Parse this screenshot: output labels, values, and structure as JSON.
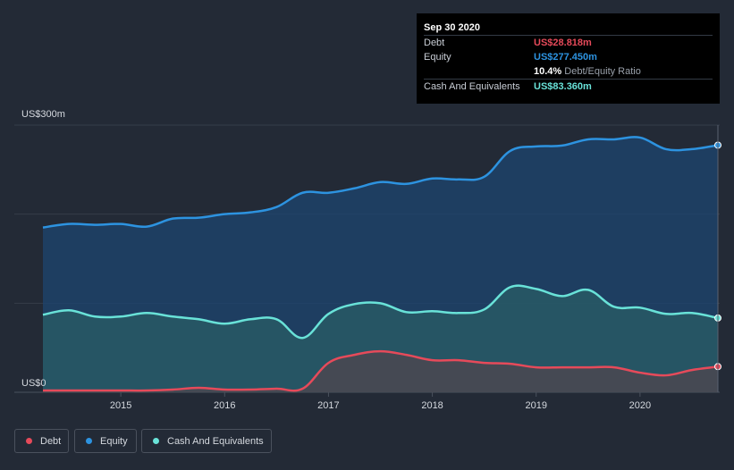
{
  "tooltip": {
    "date": "Sep 30 2020",
    "rows": [
      {
        "label": "Debt",
        "value": "US$28.818m",
        "color": "#e64a5a"
      },
      {
        "label": "Equity",
        "value": "US$277.450m",
        "color": "#2d93e0"
      },
      {
        "label": "",
        "value": "10.4%",
        "suffix": "Debt/Equity Ratio",
        "color": "#ffffff"
      },
      {
        "label": "Cash And Equivalents",
        "value": "US$83.360m",
        "color": "#69e2d8"
      }
    ]
  },
  "legend": [
    {
      "label": "Debt",
      "color": "#e64a5a"
    },
    {
      "label": "Equity",
      "color": "#2d93e0"
    },
    {
      "label": "Cash And Equivalents",
      "color": "#69e2d8"
    }
  ],
  "chart_data": {
    "type": "area",
    "ylim": [
      0,
      300
    ],
    "xlim": [
      2014.2,
      2020.75
    ],
    "y_tick_labels": [
      {
        "value": 300,
        "label": "US$300m"
      },
      {
        "value": 0,
        "label": "US$0"
      }
    ],
    "gridlines": [
      300,
      200,
      100,
      0
    ],
    "x_ticks": [
      {
        "value": 2015,
        "label": "2015"
      },
      {
        "value": 2016,
        "label": "2016"
      },
      {
        "value": 2017,
        "label": "2017"
      },
      {
        "value": 2018,
        "label": "2018"
      },
      {
        "value": 2019,
        "label": "2019"
      },
      {
        "value": 2020,
        "label": "2020"
      }
    ],
    "series": [
      {
        "name": "Equity",
        "color": "#2d93e0",
        "fill": "#1d4670",
        "points": [
          [
            2014.25,
            185
          ],
          [
            2014.5,
            189
          ],
          [
            2014.75,
            188
          ],
          [
            2015.0,
            189
          ],
          [
            2015.25,
            186
          ],
          [
            2015.5,
            195
          ],
          [
            2015.75,
            196
          ],
          [
            2016.0,
            200
          ],
          [
            2016.25,
            202
          ],
          [
            2016.5,
            208
          ],
          [
            2016.75,
            224
          ],
          [
            2017.0,
            224
          ],
          [
            2017.25,
            229
          ],
          [
            2017.5,
            236
          ],
          [
            2017.75,
            234
          ],
          [
            2018.0,
            240
          ],
          [
            2018.25,
            239
          ],
          [
            2018.5,
            242
          ],
          [
            2018.75,
            271
          ],
          [
            2019.0,
            276
          ],
          [
            2019.25,
            277
          ],
          [
            2019.5,
            284
          ],
          [
            2019.75,
            284
          ],
          [
            2020.0,
            286
          ],
          [
            2020.25,
            273
          ],
          [
            2020.5,
            273
          ],
          [
            2020.75,
            277.45
          ]
        ]
      },
      {
        "name": "Cash And Equivalents",
        "color": "#69e2d8",
        "fill": "#2a5d65",
        "points": [
          [
            2014.25,
            87
          ],
          [
            2014.5,
            92
          ],
          [
            2014.75,
            85
          ],
          [
            2015.0,
            85
          ],
          [
            2015.25,
            89
          ],
          [
            2015.5,
            85
          ],
          [
            2015.75,
            82
          ],
          [
            2016.0,
            77
          ],
          [
            2016.25,
            82
          ],
          [
            2016.5,
            82
          ],
          [
            2016.75,
            61
          ],
          [
            2017.0,
            88
          ],
          [
            2017.25,
            99
          ],
          [
            2017.5,
            100
          ],
          [
            2017.75,
            90
          ],
          [
            2018.0,
            91
          ],
          [
            2018.25,
            89
          ],
          [
            2018.5,
            93
          ],
          [
            2018.75,
            118
          ],
          [
            2019.0,
            116
          ],
          [
            2019.25,
            108
          ],
          [
            2019.5,
            115
          ],
          [
            2019.75,
            96
          ],
          [
            2020.0,
            95
          ],
          [
            2020.25,
            88
          ],
          [
            2020.5,
            89
          ],
          [
            2020.75,
            83.36
          ]
        ]
      },
      {
        "name": "Debt",
        "color": "#e64a5a",
        "fill": "#50454e",
        "points": [
          [
            2014.25,
            2
          ],
          [
            2014.5,
            2
          ],
          [
            2014.75,
            2
          ],
          [
            2015.0,
            2
          ],
          [
            2015.25,
            2
          ],
          [
            2015.5,
            3
          ],
          [
            2015.75,
            5
          ],
          [
            2016.0,
            3
          ],
          [
            2016.25,
            3
          ],
          [
            2016.5,
            4
          ],
          [
            2016.75,
            4
          ],
          [
            2017.0,
            33
          ],
          [
            2017.25,
            42
          ],
          [
            2017.5,
            46
          ],
          [
            2017.75,
            42
          ],
          [
            2018.0,
            36
          ],
          [
            2018.25,
            36
          ],
          [
            2018.5,
            33
          ],
          [
            2018.75,
            32
          ],
          [
            2019.0,
            28
          ],
          [
            2019.25,
            28
          ],
          [
            2019.5,
            28
          ],
          [
            2019.75,
            28
          ],
          [
            2020.0,
            22
          ],
          [
            2020.25,
            19
          ],
          [
            2020.5,
            25
          ],
          [
            2020.75,
            28.818
          ]
        ]
      }
    ]
  }
}
